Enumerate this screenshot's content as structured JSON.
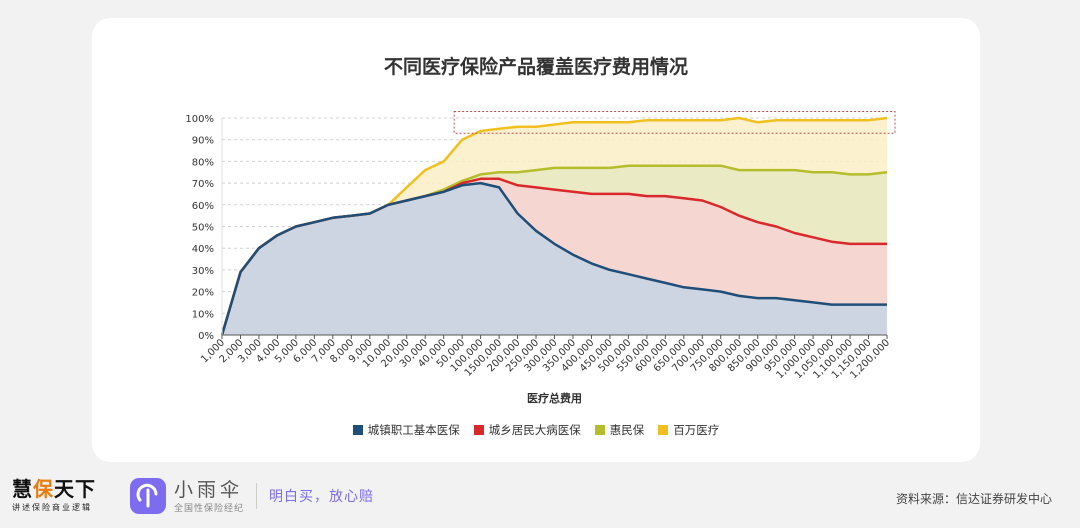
{
  "chart_data": {
    "type": "area",
    "title": "不同医疗保险产品覆盖医疗费用情况",
    "xlabel": "医疗总费用",
    "ylabel": "",
    "ylim": [
      0,
      100
    ],
    "yticks": [
      "0%",
      "10%",
      "20%",
      "30%",
      "40%",
      "50%",
      "60%",
      "70%",
      "80%",
      "90%",
      "100%"
    ],
    "grid": true,
    "legend_position": "bottom",
    "categories": [
      "1,000",
      "2,000",
      "3,000",
      "4,000",
      "5,000",
      "6,000",
      "7,000",
      "8,000",
      "9,000",
      "10,000",
      "20,000",
      "30,000",
      "40,000",
      "50,000",
      "100,000",
      "1500,000",
      "200,000",
      "250,000",
      "300,000",
      "350,000",
      "400,000",
      "450,000",
      "500,000",
      "550,000",
      "600,000",
      "650,000",
      "700,000",
      "750,000",
      "800,000",
      "850,000",
      "900,000",
      "950,000",
      "1,000,000",
      "1,050,000",
      "1,100,000",
      "1,150,000",
      "1,200,000"
    ],
    "series": [
      {
        "name": "城镇职工基本医保",
        "color": "#1f4e79",
        "fill": "#c6d5e6",
        "values": [
          0,
          29,
          40,
          46,
          50,
          52,
          54,
          55,
          56,
          60,
          62,
          64,
          66,
          69,
          70,
          68,
          56,
          48,
          42,
          37,
          33,
          30,
          28,
          26,
          24,
          22,
          21,
          20,
          18,
          17,
          17,
          16,
          15,
          14,
          14,
          14,
          14
        ]
      },
      {
        "name": "城乡居民大病医保",
        "color": "#d9292b",
        "fill": "#f8d2d4",
        "values": [
          0,
          29,
          40,
          46,
          50,
          52,
          54,
          55,
          56,
          60,
          62,
          64,
          66,
          70,
          72,
          72,
          69,
          68,
          67,
          66,
          65,
          65,
          65,
          64,
          64,
          63,
          62,
          59,
          55,
          52,
          50,
          47,
          45,
          43,
          42,
          42,
          42
        ]
      },
      {
        "name": "惠民保",
        "color": "#b5bd2c",
        "fill": "#e6eac2",
        "values": [
          0,
          29,
          40,
          46,
          50,
          52,
          54,
          55,
          56,
          60,
          62,
          64,
          67,
          71,
          74,
          75,
          75,
          76,
          77,
          77,
          77,
          77,
          78,
          78,
          78,
          78,
          78,
          78,
          76,
          76,
          76,
          76,
          75,
          75,
          74,
          74,
          75
        ]
      },
      {
        "name": "百万医疗",
        "color": "#f0c020",
        "fill": "#fbefc7",
        "values": [
          0,
          29,
          40,
          46,
          50,
          52,
          54,
          55,
          56,
          60,
          68,
          76,
          80,
          90,
          94,
          95,
          96,
          96,
          97,
          98,
          98,
          98,
          98,
          99,
          99,
          99,
          99,
          99,
          100,
          98,
          99,
          99,
          99,
          99,
          99,
          99,
          100
        ]
      }
    ],
    "annotations": [
      {
        "type": "dashed-box",
        "range": [
          13,
          36
        ],
        "yrange": [
          93,
          103
        ]
      }
    ]
  },
  "footer": {
    "logo_main": "慧保天下",
    "logo_sub": "讲述保险商业逻辑",
    "brand_name": "小雨伞",
    "brand_tag": "全国性保险经纪",
    "slogan": "明白买，放心赔",
    "source": "资料来源：信达证券研发中心"
  }
}
